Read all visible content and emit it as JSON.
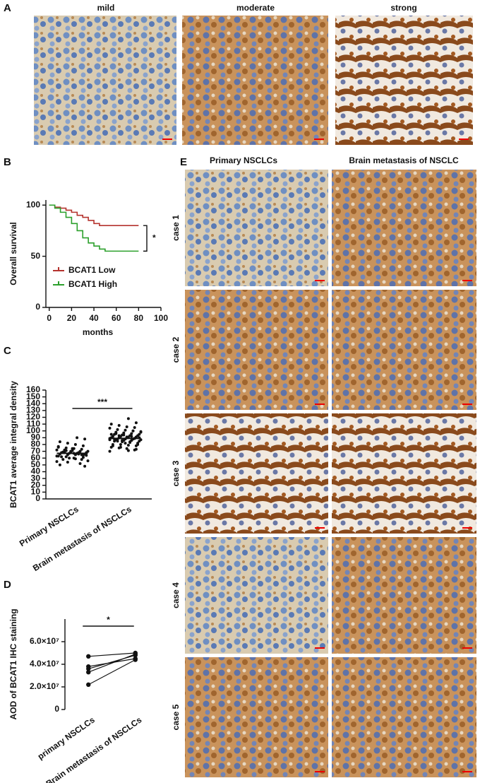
{
  "panel_labels": [
    "A",
    "B",
    "C",
    "D",
    "E"
  ],
  "panel_a": {
    "titles": [
      "mild",
      "moderate",
      "strong"
    ]
  },
  "panel_e": {
    "columns": [
      "Primary NSCLCs",
      "Brain metastasis of NSCLC"
    ],
    "rows": [
      "case 1",
      "case 2",
      "case 3",
      "case 4",
      "case 5"
    ]
  },
  "chart_data": [
    {
      "type": "line",
      "y_label": "Overall survival",
      "x_label": "months",
      "annotation": "*",
      "xlim": [
        -3,
        100
      ],
      "xticks": [
        0,
        20,
        40,
        60,
        80,
        100
      ],
      "ylim": [
        0,
        105
      ],
      "yticks": [
        0,
        50,
        100
      ],
      "series": [
        {
          "name": "BCAT1 Low",
          "color": "#b5332e",
          "x": [
            0,
            5,
            10,
            15,
            20,
            25,
            30,
            35,
            40,
            45,
            80
          ],
          "values": [
            100,
            98,
            97,
            95,
            93,
            90,
            88,
            85,
            82,
            80,
            80
          ]
        },
        {
          "name": "BCAT1 High",
          "color": "#2ca02c",
          "x": [
            0,
            5,
            10,
            15,
            20,
            25,
            30,
            35,
            40,
            45,
            50,
            80
          ],
          "values": [
            100,
            97,
            93,
            88,
            82,
            75,
            68,
            63,
            60,
            57,
            55,
            55
          ]
        }
      ]
    },
    {
      "type": "dotplot",
      "y_label": "BCAT1 average integral density",
      "annotation": "***",
      "categories": [
        "Primary NSCLCs",
        "Brain metastasis of NSCLCs"
      ],
      "ylim": [
        0,
        160
      ],
      "yticks": [
        0,
        10,
        20,
        30,
        40,
        50,
        60,
        70,
        80,
        90,
        100,
        110,
        120,
        130,
        140,
        150,
        160
      ],
      "means": [
        67,
        89
      ],
      "groups": [
        [
          55,
          58,
          60,
          62,
          63,
          64,
          65,
          65,
          66,
          66,
          67,
          67,
          68,
          68,
          68,
          69,
          69,
          70,
          70,
          71,
          72,
          72,
          73,
          74,
          75,
          76,
          78,
          80,
          82,
          84,
          88,
          90,
          60,
          62,
          64,
          66,
          70,
          58,
          56,
          52,
          74,
          68,
          63,
          65,
          67,
          71,
          77,
          61,
          59,
          54,
          50,
          48
        ],
        [
          70,
          72,
          74,
          75,
          76,
          78,
          79,
          80,
          80,
          82,
          83,
          84,
          85,
          85,
          86,
          86,
          87,
          87,
          88,
          88,
          88,
          89,
          89,
          90,
          90,
          90,
          91,
          91,
          92,
          92,
          93,
          93,
          94,
          95,
          95,
          96,
          97,
          98,
          99,
          100,
          101,
          102,
          104,
          105,
          106,
          108,
          110,
          112,
          118,
          76,
          78,
          80,
          84,
          86,
          88,
          90,
          92,
          94,
          96,
          98,
          100,
          82,
          85,
          87,
          89,
          91,
          93,
          95,
          73,
          71
        ]
      ]
    },
    {
      "type": "paired",
      "y_label": "AOD of BCAT1 IHC staining",
      "annotation": "*",
      "categories": [
        "primary NSCLCs",
        "Brain metastasis of NSCLCs"
      ],
      "ylim": [
        0,
        80000000
      ],
      "yticks": [
        0,
        {
          "value": 20000000,
          "label": "2.0×10⁷"
        },
        {
          "value": 40000000,
          "label": "4.0×10⁷"
        },
        {
          "value": 60000000,
          "label": "6.0×10⁷"
        }
      ],
      "series": [
        {
          "color": "#111111",
          "values": [
            47000000,
            50000000
          ]
        },
        {
          "color": "#111111",
          "values": [
            38000000,
            45000000
          ]
        },
        {
          "color": "#111111",
          "values": [
            36000000,
            48000000
          ]
        },
        {
          "color": "#111111",
          "values": [
            33000000,
            49000000
          ]
        },
        {
          "color": "#111111",
          "values": [
            22000000,
            44000000
          ]
        }
      ]
    }
  ]
}
